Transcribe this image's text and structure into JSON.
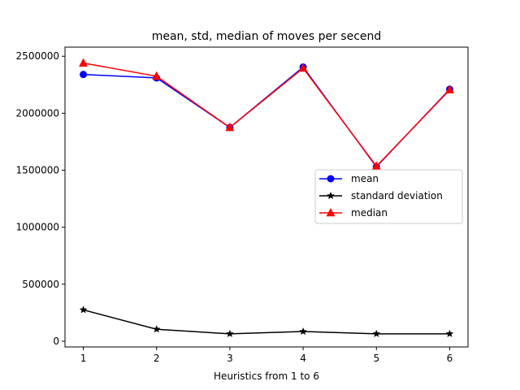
{
  "chart_data": {
    "type": "line",
    "title": "mean, std, median of moves per secend",
    "xlabel": "Heuristics from 1 to 6",
    "ylabel": "",
    "x": [
      1,
      2,
      3,
      4,
      5,
      6
    ],
    "xlim": [
      0.75,
      6.25
    ],
    "ylim": [
      -50000,
      2580000
    ],
    "xticks": [
      1,
      2,
      3,
      4,
      5,
      6
    ],
    "xtick_labels": [
      "1",
      "2",
      "3",
      "4",
      "5",
      "6"
    ],
    "yticks": [
      0,
      500000,
      1000000,
      1500000,
      2000000,
      2500000
    ],
    "ytick_labels": [
      "0",
      "500000",
      "1000000",
      "1500000",
      "2000000",
      "2500000"
    ],
    "grid": false,
    "legend_position": "center-right",
    "series": [
      {
        "name": "mean",
        "color": "#0000ff",
        "marker": "circle",
        "values": [
          2340000,
          2310000,
          1875000,
          2405000,
          1530000,
          2210000
        ]
      },
      {
        "name": "standard deviation",
        "color": "#000000",
        "marker": "star",
        "values": [
          275000,
          105000,
          65000,
          85000,
          65000,
          65000
        ]
      },
      {
        "name": "median",
        "color": "#ff0000",
        "marker": "triangle",
        "values": [
          2440000,
          2325000,
          1875000,
          2395000,
          1535000,
          2205000
        ]
      }
    ]
  }
}
